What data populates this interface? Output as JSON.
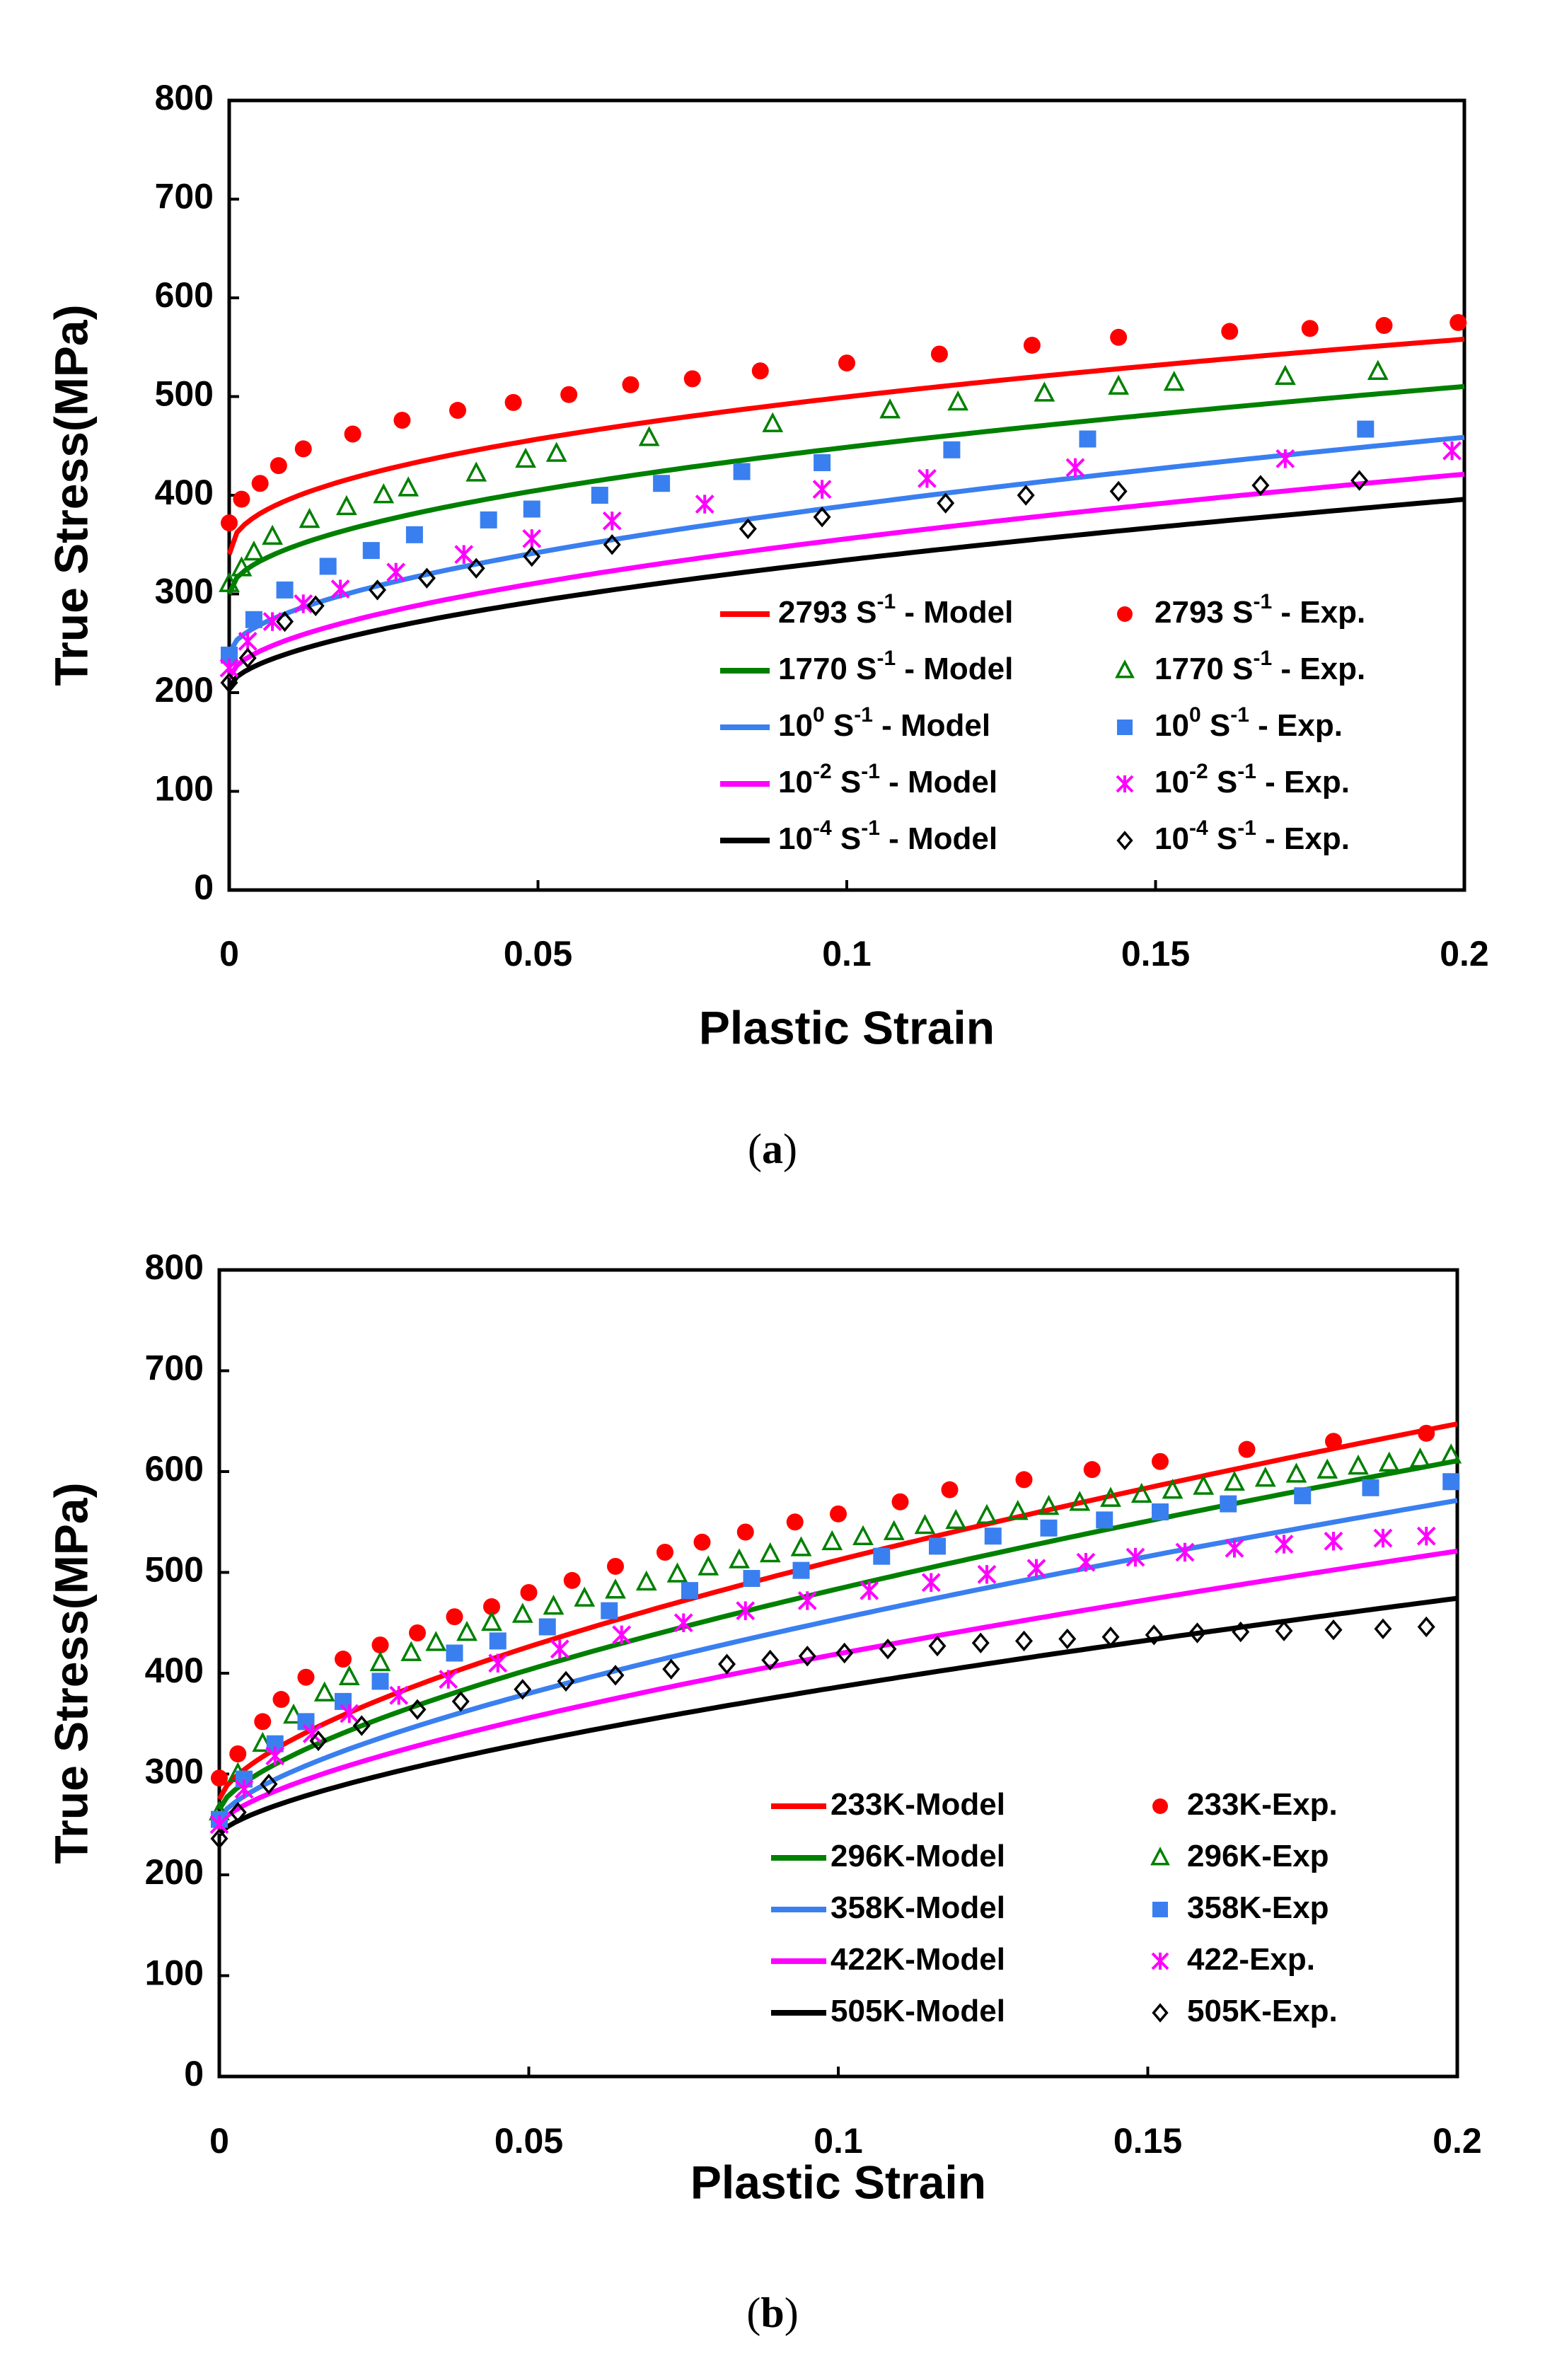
{
  "chart_data": [
    {
      "id": "a",
      "type": "line",
      "caption": "a",
      "xlabel": "Plastic Strain",
      "ylabel": "True Stress(MPa)",
      "xlim": [
        0,
        0.2
      ],
      "ylim": [
        0,
        800
      ],
      "xticks": [
        0,
        0.05,
        0.1,
        0.15,
        0.2
      ],
      "xtick_labels": [
        "0",
        "0.05",
        "0.1",
        "0.15",
        "0.2"
      ],
      "yticks": [
        0,
        100,
        200,
        300,
        400,
        500,
        600,
        700,
        800
      ],
      "ytick_labels": [
        "0",
        "100",
        "200",
        "300",
        "400",
        "500",
        "600",
        "700",
        "800"
      ],
      "legend_position": "bottom-right",
      "series": [
        {
          "name": "2793 S⁻¹ - Model",
          "kind": "model",
          "color": "#ff0000",
          "y0": 340,
          "a": 450,
          "n": 0.45,
          "label": {
            "base": "2793 S",
            "sup": "-1",
            "suffix": " - Model"
          }
        },
        {
          "name": "1770 S⁻¹ - Model",
          "kind": "model",
          "color": "#008000",
          "y0": 300,
          "a": 470,
          "n": 0.5,
          "label": {
            "base": "1770 S",
            "sup": "-1",
            "suffix": " - Model"
          }
        },
        {
          "name": "10⁰ S⁻¹ - Model",
          "kind": "model",
          "color": "#3a7ff0",
          "y0": 240,
          "a": 530,
          "n": 0.55,
          "label": {
            "base": "10",
            "sup": "0",
            "base2": " S",
            "sup2": "-1",
            "suffix": "  - Model"
          }
        },
        {
          "name": "10⁻² S⁻¹ - Model",
          "kind": "model",
          "color": "#ff00ff",
          "y0": 215,
          "a": 500,
          "n": 0.55,
          "label": {
            "base": "10",
            "sup": "-2",
            "base2": " S",
            "sup2": "-1",
            "suffix": " - Model"
          }
        },
        {
          "name": "10⁻⁴ S⁻¹ - Model",
          "kind": "model",
          "color": "#000000",
          "y0": 205,
          "a": 470,
          "n": 0.56,
          "label": {
            "base": "10",
            "sup": "-4",
            "base2": " S",
            "sup2": "-1",
            "suffix": " - Model"
          }
        },
        {
          "name": "2793 S⁻¹ - Exp.",
          "kind": "exp",
          "marker": "circle",
          "color": "#ff0000",
          "label": {
            "base": "2793 S",
            "sup": "-1",
            "suffix": " - Exp."
          },
          "x": [
            0,
            0.002,
            0.005,
            0.008,
            0.012,
            0.02,
            0.028,
            0.037,
            0.046,
            0.055,
            0.065,
            0.075,
            0.086,
            0.1,
            0.115,
            0.13,
            0.144,
            0.162,
            0.175,
            0.187,
            0.199
          ],
          "y": [
            372,
            396,
            412,
            430,
            447,
            462,
            476,
            486,
            494,
            502,
            512,
            518,
            526,
            534,
            543,
            552,
            560,
            566,
            569,
            572,
            575
          ]
        },
        {
          "name": "1770 S⁻¹ - Exp.",
          "kind": "exp",
          "marker": "triangle",
          "color": "#008000",
          "label": {
            "base": "1770 S",
            "sup": "-1",
            "suffix": " - Exp."
          },
          "x": [
            0,
            0.002,
            0.004,
            0.007,
            0.013,
            0.019,
            0.025,
            0.029,
            0.04,
            0.048,
            0.053,
            0.068,
            0.088,
            0.107,
            0.118,
            0.132,
            0.144,
            0.153,
            0.171,
            0.186
          ],
          "y": [
            310,
            326,
            342,
            358,
            375,
            388,
            400,
            407,
            422,
            436,
            442,
            458,
            472,
            486,
            494,
            503,
            510,
            514,
            520,
            525
          ]
        },
        {
          "name": "10⁰ S⁻¹ - Exp.",
          "kind": "exp",
          "marker": "square",
          "color": "#3a7ff0",
          "label": {
            "base": "10",
            "sup": "0",
            "base2": " S",
            "sup2": "-1",
            "suffix": "  - Exp."
          },
          "x": [
            0,
            0.004,
            0.009,
            0.016,
            0.023,
            0.03,
            0.042,
            0.049,
            0.06,
            0.07,
            0.083,
            0.096,
            0.117,
            0.139,
            0.184
          ],
          "y": [
            238,
            274,
            304,
            328,
            344,
            360,
            375,
            386,
            400,
            412,
            424,
            433,
            446,
            457,
            467
          ]
        },
        {
          "name": "10⁻² S⁻¹ - Exp.",
          "kind": "exp",
          "marker": "asterisk",
          "color": "#ff00ff",
          "label": {
            "base": "10",
            "sup": "-2",
            "base2": " S",
            "sup2": "-1",
            "suffix": " - Exp."
          },
          "x": [
            0,
            0.003,
            0.007,
            0.012,
            0.018,
            0.027,
            0.038,
            0.049,
            0.062,
            0.077,
            0.096,
            0.113,
            0.137,
            0.171,
            0.198
          ],
          "y": [
            225,
            252,
            272,
            290,
            305,
            322,
            340,
            356,
            374,
            391,
            406,
            417,
            428,
            437,
            445
          ]
        },
        {
          "name": "10⁻⁴ S⁻¹ - Exp.",
          "kind": "exp",
          "marker": "diamond",
          "color": "#000000",
          "label": {
            "base": "10",
            "sup": "-4",
            "base2": " S",
            "sup2": "-1",
            "suffix": " - Exp."
          },
          "x": [
            0,
            0.003,
            0.009,
            0.014,
            0.024,
            0.032,
            0.04,
            0.049,
            0.062,
            0.084,
            0.096,
            0.116,
            0.129,
            0.144,
            0.167,
            0.183
          ],
          "y": [
            210,
            235,
            272,
            288,
            304,
            316,
            326,
            338,
            350,
            366,
            378,
            392,
            400,
            404,
            410,
            415
          ]
        }
      ]
    },
    {
      "id": "b",
      "type": "line",
      "caption": "b",
      "xlabel": "Plastic Strain",
      "ylabel": "True Stress(MPa)",
      "xlim": [
        0,
        0.2
      ],
      "ylim": [
        0,
        800
      ],
      "xticks": [
        0,
        0.05,
        0.1,
        0.15,
        0.2
      ],
      "xtick_labels": [
        "0",
        "0.05",
        "0.1",
        "0.15",
        "0.2"
      ],
      "yticks": [
        0,
        100,
        200,
        300,
        400,
        500,
        600,
        700,
        800
      ],
      "ytick_labels": [
        "0",
        "100",
        "200",
        "300",
        "400",
        "500",
        "600",
        "700",
        "800"
      ],
      "legend_position": "bottom-right",
      "series": [
        {
          "name": "233K-Model",
          "kind": "model",
          "color": "#ff0000",
          "y0": 275,
          "a": 1060,
          "n": 0.65,
          "label": {
            "base": "233K-Model"
          }
        },
        {
          "name": "296K-Model",
          "kind": "model",
          "color": "#008000",
          "y0": 265,
          "a": 1000,
          "n": 0.66,
          "label": {
            "base": "296K-Model"
          }
        },
        {
          "name": "358K-Model",
          "kind": "model",
          "color": "#3a7ff0",
          "y0": 255,
          "a": 930,
          "n": 0.67,
          "label": {
            "base": "358K-Model"
          }
        },
        {
          "name": "422K-Model",
          "kind": "model",
          "color": "#ff00ff",
          "y0": 250,
          "a": 810,
          "n": 0.68,
          "label": {
            "base": "422K-Model"
          }
        },
        {
          "name": "505K-Model",
          "kind": "model",
          "color": "#000000",
          "y0": 240,
          "a": 700,
          "n": 0.68,
          "label": {
            "base": "505K-Model"
          }
        },
        {
          "name": "233K-Exp.",
          "kind": "exp",
          "marker": "circle",
          "color": "#ff0000",
          "label": {
            "base": "233K-Exp."
          },
          "x": [
            0,
            0.003,
            0.007,
            0.01,
            0.014,
            0.02,
            0.026,
            0.032,
            0.038,
            0.044,
            0.05,
            0.057,
            0.064,
            0.072,
            0.078,
            0.085,
            0.093,
            0.1,
            0.11,
            0.118,
            0.13,
            0.141,
            0.152,
            0.166,
            0.18,
            0.195
          ],
          "y": [
            296,
            320,
            352,
            374,
            396,
            414,
            428,
            440,
            456,
            466,
            480,
            492,
            506,
            520,
            530,
            540,
            550,
            558,
            570,
            582,
            592,
            602,
            610,
            622,
            630,
            638
          ]
        },
        {
          "name": "296K-Exp",
          "kind": "exp",
          "marker": "triangle",
          "color": "#008000",
          "label": {
            "base": "296K-Exp"
          },
          "x": [
            0,
            0.003,
            0.007,
            0.012,
            0.017,
            0.021,
            0.026,
            0.031,
            0.035,
            0.04,
            0.044,
            0.049,
            0.054,
            0.059,
            0.064,
            0.069,
            0.074,
            0.079,
            0.084,
            0.089,
            0.094,
            0.099,
            0.104,
            0.109,
            0.114,
            0.119,
            0.124,
            0.129,
            0.134,
            0.139,
            0.144,
            0.149,
            0.154,
            0.159,
            0.164,
            0.169,
            0.174,
            0.179,
            0.184,
            0.189,
            0.194,
            0.199
          ],
          "y": [
            262,
            300,
            330,
            358,
            380,
            396,
            410,
            420,
            430,
            440,
            450,
            458,
            466,
            474,
            482,
            490,
            498,
            505,
            512,
            518,
            524,
            530,
            535,
            540,
            546,
            551,
            556,
            560,
            565,
            569,
            573,
            577,
            581,
            585,
            589,
            593,
            597,
            601,
            605,
            608,
            612,
            616
          ]
        },
        {
          "name": "358K-Exp",
          "kind": "exp",
          "marker": "square",
          "color": "#3a7ff0",
          "label": {
            "base": "358K-Exp"
          },
          "x": [
            0,
            0.004,
            0.009,
            0.014,
            0.02,
            0.026,
            0.038,
            0.045,
            0.053,
            0.063,
            0.076,
            0.086,
            0.094,
            0.107,
            0.116,
            0.125,
            0.134,
            0.143,
            0.152,
            0.163,
            0.175,
            0.186,
            0.199
          ],
          "y": [
            255,
            295,
            330,
            352,
            372,
            392,
            420,
            432,
            446,
            462,
            482,
            494,
            502,
            516,
            526,
            536,
            544,
            552,
            560,
            568,
            576,
            584,
            590
          ]
        },
        {
          "name": "422-Exp.",
          "kind": "exp",
          "marker": "asterisk",
          "color": "#ff00ff",
          "label": {
            "base": "422-Exp."
          },
          "x": [
            0,
            0.004,
            0.009,
            0.015,
            0.021,
            0.029,
            0.037,
            0.045,
            0.055,
            0.065,
            0.075,
            0.085,
            0.095,
            0.105,
            0.115,
            0.124,
            0.132,
            0.14,
            0.148,
            0.156,
            0.164,
            0.172,
            0.18,
            0.188,
            0.195
          ],
          "y": [
            250,
            285,
            318,
            340,
            360,
            378,
            394,
            410,
            424,
            438,
            450,
            462,
            472,
            482,
            490,
            498,
            504,
            510,
            515,
            520,
            524,
            528,
            531,
            534,
            536
          ]
        },
        {
          "name": "505K-Exp.",
          "kind": "exp",
          "marker": "diamond",
          "color": "#000000",
          "label": {
            "base": "505K-Exp."
          },
          "x": [
            0,
            0.003,
            0.008,
            0.016,
            0.023,
            0.032,
            0.039,
            0.049,
            0.056,
            0.064,
            0.073,
            0.082,
            0.089,
            0.095,
            0.101,
            0.108,
            0.116,
            0.123,
            0.13,
            0.137,
            0.144,
            0.151,
            0.158,
            0.165,
            0.172,
            0.18,
            0.188,
            0.195
          ],
          "y": [
            236,
            262,
            290,
            333,
            348,
            364,
            372,
            384,
            392,
            398,
            404,
            409,
            413,
            417,
            420,
            424,
            427,
            430,
            432,
            434,
            436,
            438,
            440,
            441,
            442,
            443,
            444,
            446
          ]
        }
      ]
    }
  ]
}
